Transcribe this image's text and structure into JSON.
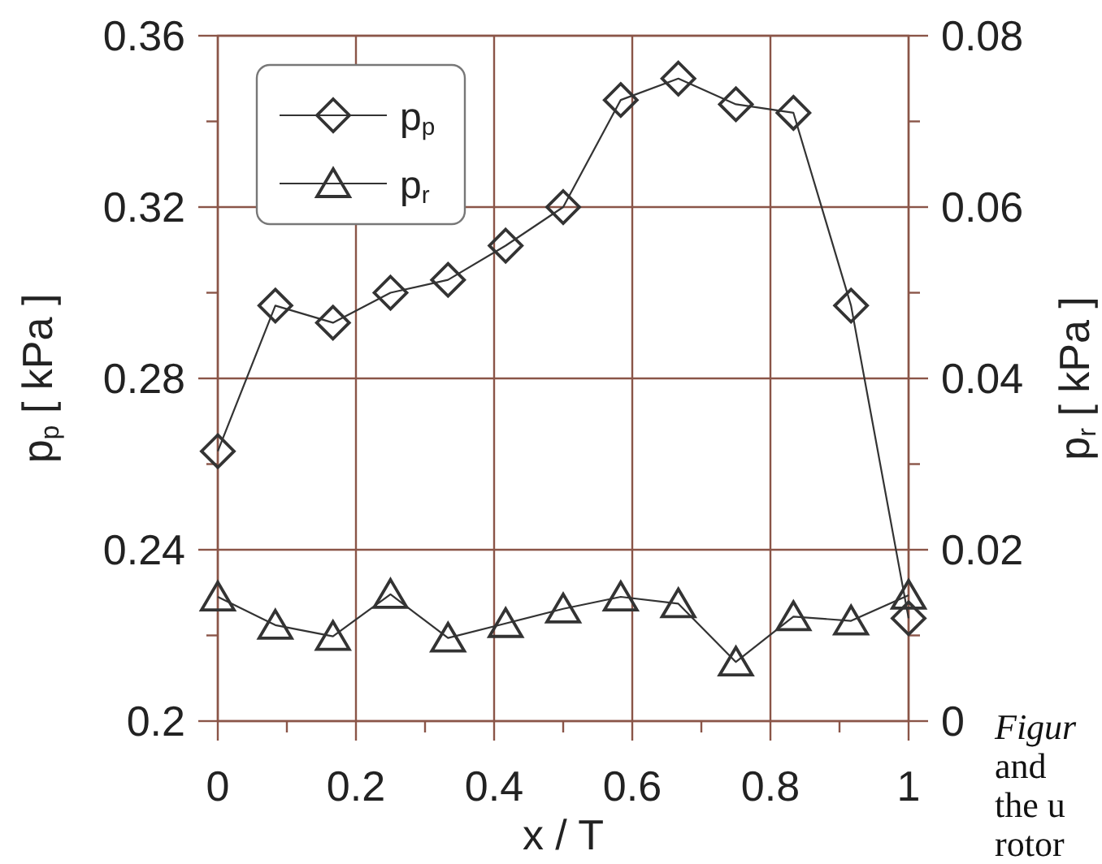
{
  "chart_data": {
    "type": "line",
    "xlabel": "x / T",
    "ylabel": "p$_{p}$ [ kPa ]",
    "y2label": "p$_{r}$ [ kPa ]",
    "x": [
      0,
      0.0833,
      0.1667,
      0.25,
      0.3333,
      0.4167,
      0.5,
      0.5833,
      0.6667,
      0.75,
      0.8333,
      0.9167,
      1
    ],
    "series": [
      {
        "name": "p$_{p}$",
        "color": "#333333",
        "marker": "diamond",
        "values": [
          0.263,
          0.297,
          0.293,
          0.3,
          0.303,
          0.311,
          0.32,
          0.345,
          0.35,
          0.344,
          0.342,
          0.297,
          0.224
        ]
      },
      {
        "name": "p$_{r}$",
        "color": "#333333",
        "marker": "triangle",
        "axis": "y2",
        "values": [
          0.0145,
          0.0112,
          0.0099,
          0.0148,
          0.0097,
          0.0114,
          0.0131,
          0.0145,
          0.0137,
          0.0069,
          0.0122,
          0.0117,
          0.0147
        ]
      }
    ],
    "xlim": [
      0,
      1
    ],
    "xticks": [
      0,
      {
        "value": 0.1,
        "label": null
      },
      0.2,
      {
        "value": 0.3,
        "label": null
      },
      0.4,
      {
        "value": 0.5,
        "label": null
      },
      0.6,
      {
        "value": 0.7,
        "label": null
      },
      0.8,
      {
        "value": 0.9,
        "label": null
      },
      1
    ],
    "ylim": [
      0.2,
      0.36
    ],
    "yticks": [
      0.2,
      {
        "value": 0.22,
        "label": null
      },
      0.24,
      {
        "value": 0.26,
        "label": null
      },
      0.28,
      {
        "value": 0.3,
        "label": null
      },
      0.32,
      {
        "value": 0.34,
        "label": null
      },
      0.36
    ],
    "y2lim": [
      0,
      0.08
    ],
    "y2ticks": [
      0,
      {
        "value": 0.01,
        "label": null
      },
      0.02,
      {
        "value": 0.03,
        "label": null
      },
      0.04,
      {
        "value": 0.05,
        "label": null
      },
      0.06,
      {
        "value": 0.07,
        "label": null
      },
      0.08
    ],
    "grid": true,
    "legend": "top left",
    "line_style": "solid",
    "annotations": [
      "Figur",
      "and",
      "the u",
      "rotor"
    ]
  }
}
